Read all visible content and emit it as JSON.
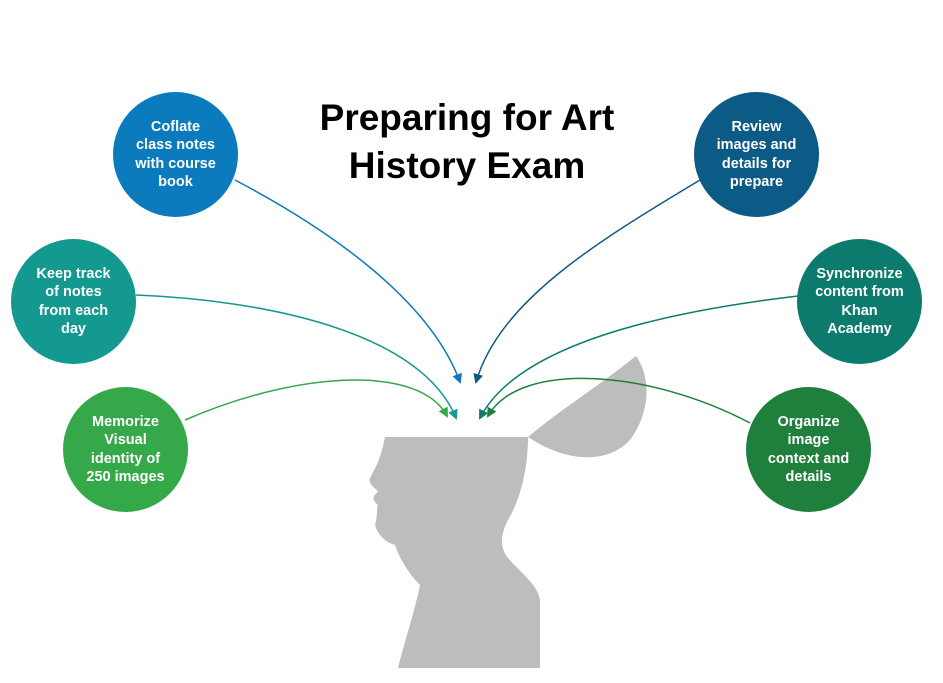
{
  "title": {
    "line1": "Preparing for Art",
    "line2": "History Exam"
  },
  "bubbles": [
    {
      "lines": [
        "Coflate",
        "class notes",
        "with course",
        "book"
      ],
      "color": "#0b7bbd"
    },
    {
      "lines": [
        "Keep track",
        "of notes",
        "from each",
        "day"
      ],
      "color": "#13998f"
    },
    {
      "lines": [
        "Memorize",
        "Visual",
        "identity of",
        "250 images"
      ],
      "color": "#35a84a"
    },
    {
      "lines": [
        "Review",
        "images and",
        "details for",
        "prepare"
      ],
      "color": "#0c5a86"
    },
    {
      "lines": [
        "Synchronize",
        "content from",
        "Khan",
        "Academy"
      ],
      "color": "#0c7a6c"
    },
    {
      "lines": [
        "Organize",
        "image",
        "context and",
        "details"
      ],
      "color": "#1f7f3c"
    }
  ],
  "colors": {
    "head": "#bdbdbd",
    "background": "#ffffff"
  }
}
